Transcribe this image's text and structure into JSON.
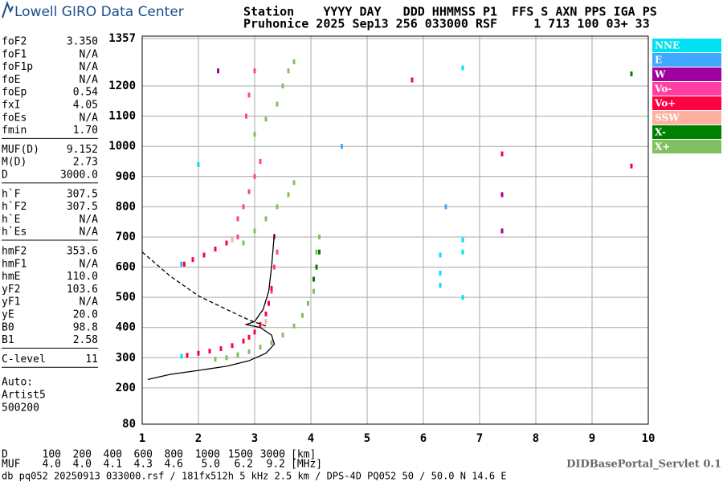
{
  "header": {
    "brand": "Lowell GIRO Data Center",
    "line1": "Station    YYYY DAY   DDD HHMMSS P1  FFS S AXN PPS IGA PS",
    "line2": "Pruhonice 2025 Sep13 256 033000 RSF     1 713 100 03+ 33"
  },
  "parameters": [
    [
      [
        "foF2",
        "3.350"
      ],
      [
        "foF1",
        "N/A"
      ],
      [
        "foF1p",
        "N/A"
      ],
      [
        "foE",
        "N/A"
      ],
      [
        "foEp",
        "0.54"
      ],
      [
        "fxI",
        "4.05"
      ],
      [
        "foEs",
        "N/A"
      ],
      [
        "fmin",
        "1.70"
      ]
    ],
    [
      [
        "MUF(D)",
        "9.152"
      ],
      [
        "M(D)",
        "2.73"
      ],
      [
        "D",
        "3000.0"
      ]
    ],
    [
      [
        "h`F",
        "307.5"
      ],
      [
        "h`F2",
        "307.5"
      ],
      [
        "h`E",
        "N/A"
      ],
      [
        "h`Es",
        "N/A"
      ]
    ],
    [
      [
        "hmF2",
        "353.6"
      ],
      [
        "hmF1",
        "N/A"
      ],
      [
        "hmE",
        "110.0"
      ],
      [
        "yF2",
        "103.6"
      ],
      [
        "yF1",
        "N/A"
      ],
      [
        "yE",
        "20.0"
      ],
      [
        "B0",
        "98.8"
      ],
      [
        "B1",
        "2.58"
      ]
    ],
    [
      [
        "C-level",
        "11"
      ]
    ]
  ],
  "autoscaling": [
    "Auto:",
    "Artist5",
    "500200"
  ],
  "muf_table": {
    "d_label": "D",
    "d_values": [
      "100",
      "200",
      "400",
      "600",
      "800",
      "1000",
      "1500",
      "3000"
    ],
    "d_unit": "[km]",
    "muf_label": "MUF",
    "muf_values": [
      "4.0",
      "4.0",
      "4.1",
      "4.3",
      "4.6",
      "5.0",
      "6.2",
      "9.2"
    ],
    "muf_unit": "[MHz]"
  },
  "footer": "db pq052 20250913 033000.rsf / 181fx512h 5 kHz 2.5 km / DPS-4D PQ052 50 / 50.0 N 14.6 E",
  "servlet": "DIDBasePortal_Servlet 0.1",
  "chart_data": {
    "type": "scatter",
    "xlim": [
      1,
      10
    ],
    "xticks": [
      1,
      2,
      3,
      4,
      5,
      6,
      7,
      8,
      9,
      10
    ],
    "ylim": [
      80,
      1357
    ],
    "yticks": [
      80,
      200,
      300,
      400,
      500,
      600,
      700,
      800,
      900,
      1000,
      1100,
      1200,
      1357
    ],
    "grid": true,
    "series": [
      {
        "name": "NNE",
        "color": "#00e0f0",
        "x": [
          6.3,
          6.3,
          6.3,
          6.7,
          6.7,
          6.7,
          1.7,
          2.0,
          6.7
        ],
        "y": [
          540,
          580,
          640,
          650,
          690,
          1260,
          305,
          940,
          500
        ]
      },
      {
        "name": "E",
        "color": "#40a8ff",
        "x": [
          1.7,
          6.4,
          4.55
        ],
        "y": [
          610,
          800,
          1000
        ]
      },
      {
        "name": "W",
        "color": "#a000a0",
        "x": [
          7.4,
          7.4,
          2.35
        ],
        "y": [
          720,
          840,
          1250
        ]
      },
      {
        "name": "Vo-",
        "color": "#ff40a0",
        "x": [
          2.7,
          2.8,
          2.9,
          3.0,
          3.1,
          3.35,
          3.4,
          3.35,
          2.85,
          2.9,
          3.0,
          3.3,
          2.7
        ],
        "y": [
          760,
          800,
          850,
          900,
          950,
          600,
          650,
          700,
          1100,
          1170,
          1250,
          520,
          700
        ]
      },
      {
        "name": "Vo+",
        "color": "#ff0040",
        "x": [
          1.8,
          2.0,
          2.2,
          2.4,
          2.6,
          2.8,
          2.9,
          3.0,
          3.1,
          3.2,
          3.25,
          3.3,
          1.75,
          1.9,
          2.1,
          2.3,
          2.5,
          5.8,
          9.7,
          7.4
        ],
        "y": [
          308,
          315,
          322,
          330,
          340,
          355,
          368,
          385,
          410,
          445,
          480,
          530,
          610,
          625,
          640,
          660,
          680,
          1220,
          935,
          975
        ]
      },
      {
        "name": "SSW",
        "color": "#ffb0a0",
        "x": [
          2.6,
          3.2
        ],
        "y": [
          690,
          420
        ]
      },
      {
        "name": "X-",
        "color": "#008000",
        "x": [
          4.1,
          4.15,
          4.05,
          9.7
        ],
        "y": [
          600,
          650,
          560,
          1240
        ]
      },
      {
        "name": "X+",
        "color": "#80c060",
        "x": [
          2.3,
          2.5,
          2.7,
          2.9,
          3.1,
          3.3,
          3.5,
          3.7,
          3.85,
          3.95,
          4.05,
          2.8,
          3.0,
          3.2,
          3.4,
          3.6,
          3.7,
          3.0,
          3.2,
          3.4,
          3.5,
          3.6,
          3.7,
          4.15,
          4.1
        ],
        "y": [
          295,
          300,
          310,
          320,
          335,
          350,
          375,
          405,
          440,
          480,
          520,
          680,
          720,
          760,
          800,
          840,
          880,
          1040,
          1090,
          1140,
          1200,
          1250,
          1280,
          700,
          650
        ]
      }
    ],
    "profiles": [
      {
        "style": "solid",
        "x": [
          1.1,
          1.5,
          2.0,
          2.5,
          2.9,
          3.2,
          3.35,
          3.3,
          3.1,
          2.85,
          3.0,
          3.15,
          3.25,
          3.3,
          3.35
        ],
        "y": [
          228,
          245,
          258,
          272,
          290,
          315,
          345,
          375,
          400,
          410,
          420,
          460,
          520,
          600,
          710
        ]
      },
      {
        "style": "dashed",
        "x": [
          1.0,
          1.5,
          2.0,
          2.5,
          2.9,
          3.2
        ],
        "y": [
          650,
          570,
          505,
          460,
          425,
          405
        ]
      }
    ]
  }
}
